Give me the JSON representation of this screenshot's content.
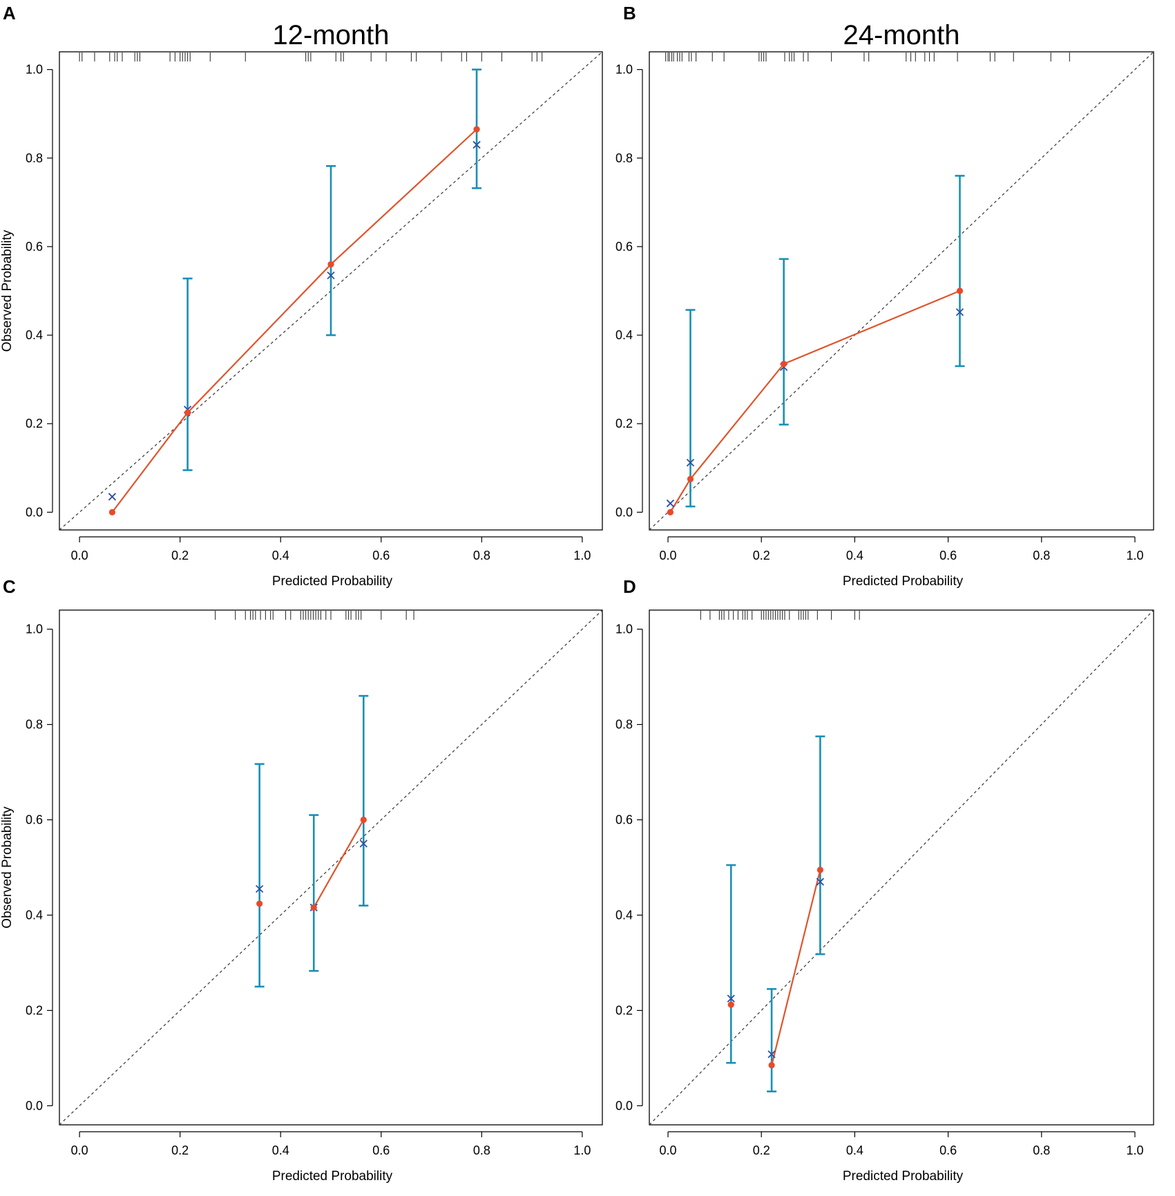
{
  "colors": {
    "frame": "#000000",
    "diagonal": "#333333",
    "apparent_line": "#e0542b",
    "apparent_point": "#e84a2a",
    "bias_cross": "#2d4ea3",
    "error_bar": "#1a8fb5",
    "rug": "#333333"
  },
  "icons": {
    "observed_marker": "filled-circle",
    "bias_corrected_marker": "x-cross"
  },
  "chart_data": [
    {
      "panel": "A",
      "type": "scatter",
      "title": "12-month",
      "xlabel": "Predicted Probability",
      "ylabel": "Observed Probability",
      "xlim": [
        -0.04,
        1.04
      ],
      "ylim": [
        -0.04,
        1.04
      ],
      "xticks": [
        "0.0",
        "0.2",
        "0.4",
        "0.6",
        "0.8",
        "1.0"
      ],
      "yticks": [
        "0.0",
        "0.2",
        "0.4",
        "0.6",
        "0.8",
        "1.0"
      ],
      "observed": [
        {
          "x": 0.065,
          "y": 0.0
        },
        {
          "x": 0.215,
          "y": 0.225
        },
        {
          "x": 0.5,
          "y": 0.56
        },
        {
          "x": 0.79,
          "y": 0.865
        }
      ],
      "bias_corrected": [
        {
          "x": 0.065,
          "y": 0.035
        },
        {
          "x": 0.215,
          "y": 0.232
        },
        {
          "x": 0.5,
          "y": 0.535
        },
        {
          "x": 0.79,
          "y": 0.83
        }
      ],
      "error_bars": [
        {
          "x": 0.215,
          "low": 0.095,
          "high": 0.528
        },
        {
          "x": 0.5,
          "low": 0.4,
          "high": 0.782
        },
        {
          "x": 0.79,
          "low": 0.732,
          "high": 1.0
        }
      ],
      "rug": [
        0.0,
        0.005,
        0.03,
        0.06,
        0.07,
        0.075,
        0.085,
        0.11,
        0.115,
        0.12,
        0.18,
        0.19,
        0.2,
        0.205,
        0.21,
        0.215,
        0.22,
        0.26,
        0.33,
        0.45,
        0.455,
        0.46,
        0.51,
        0.52,
        0.525,
        0.58,
        0.61,
        0.66,
        0.67,
        0.72,
        0.76,
        0.77,
        0.8,
        0.84,
        0.9,
        0.91,
        0.92
      ]
    },
    {
      "panel": "B",
      "type": "scatter",
      "title": "24-month",
      "xlabel": "Predicted Probability",
      "ylabel": "",
      "xlim": [
        -0.04,
        1.04
      ],
      "ylim": [
        -0.04,
        1.04
      ],
      "xticks": [
        "0.0",
        "0.2",
        "0.4",
        "0.6",
        "0.8",
        "1.0"
      ],
      "yticks": [
        "0.0",
        "0.2",
        "0.4",
        "0.6",
        "0.8",
        "1.0"
      ],
      "observed": [
        {
          "x": 0.005,
          "y": 0.0
        },
        {
          "x": 0.048,
          "y": 0.075
        },
        {
          "x": 0.248,
          "y": 0.335
        },
        {
          "x": 0.625,
          "y": 0.5
        }
      ],
      "bias_corrected": [
        {
          "x": 0.005,
          "y": 0.02
        },
        {
          "x": 0.048,
          "y": 0.112
        },
        {
          "x": 0.248,
          "y": 0.328
        },
        {
          "x": 0.625,
          "y": 0.452
        }
      ],
      "error_bars": [
        {
          "x": 0.048,
          "low": 0.013,
          "high": 0.457
        },
        {
          "x": 0.248,
          "low": 0.198,
          "high": 0.572
        },
        {
          "x": 0.625,
          "low": 0.33,
          "high": 0.76
        }
      ],
      "rug": [
        -0.005,
        0.0,
        0.003,
        0.008,
        0.012,
        0.02,
        0.025,
        0.03,
        0.045,
        0.05,
        0.06,
        0.095,
        0.12,
        0.195,
        0.2,
        0.205,
        0.21,
        0.25,
        0.26,
        0.265,
        0.27,
        0.29,
        0.3,
        0.35,
        0.42,
        0.43,
        0.51,
        0.52,
        0.53,
        0.55,
        0.56,
        0.57,
        0.62,
        0.69,
        0.7,
        0.74,
        0.82,
        0.86
      ]
    },
    {
      "panel": "C",
      "type": "scatter",
      "title": "",
      "xlabel": "Predicted Probability",
      "ylabel": "Observed Probability",
      "xlim": [
        -0.04,
        1.04
      ],
      "ylim": [
        -0.04,
        1.04
      ],
      "xticks": [
        "0.0",
        "0.2",
        "0.4",
        "0.6",
        "0.8",
        "1.0"
      ],
      "yticks": [
        "0.0",
        "0.2",
        "0.4",
        "0.6",
        "0.8",
        "1.0"
      ],
      "observed": [
        {
          "x": 0.358,
          "y": 0.424
        },
        {
          "x": 0.466,
          "y": 0.416
        },
        {
          "x": 0.565,
          "y": 0.6
        }
      ],
      "bias_corrected": [
        {
          "x": 0.358,
          "y": 0.455
        },
        {
          "x": 0.466,
          "y": 0.416
        },
        {
          "x": 0.565,
          "y": 0.55
        }
      ],
      "observed_line_from_index": 1,
      "error_bars": [
        {
          "x": 0.358,
          "low": 0.25,
          "high": 0.717
        },
        {
          "x": 0.466,
          "low": 0.283,
          "high": 0.61
        },
        {
          "x": 0.565,
          "low": 0.42,
          "high": 0.86
        }
      ],
      "rug": [
        0.27,
        0.31,
        0.33,
        0.34,
        0.345,
        0.35,
        0.36,
        0.37,
        0.38,
        0.385,
        0.41,
        0.42,
        0.44,
        0.445,
        0.45,
        0.455,
        0.46,
        0.465,
        0.47,
        0.475,
        0.48,
        0.49,
        0.5,
        0.53,
        0.535,
        0.54,
        0.55,
        0.555,
        0.56,
        0.6,
        0.65,
        0.665
      ]
    },
    {
      "panel": "D",
      "type": "scatter",
      "title": "",
      "xlabel": "Predicted Probability",
      "ylabel": "",
      "xlim": [
        -0.04,
        1.04
      ],
      "ylim": [
        -0.04,
        1.04
      ],
      "xticks": [
        "0.0",
        "0.2",
        "0.4",
        "0.6",
        "0.8",
        "1.0"
      ],
      "yticks": [
        "0.0",
        "0.2",
        "0.4",
        "0.6",
        "0.8",
        "1.0"
      ],
      "observed": [
        {
          "x": 0.135,
          "y": 0.212
        },
        {
          "x": 0.222,
          "y": 0.085
        },
        {
          "x": 0.326,
          "y": 0.495
        }
      ],
      "bias_corrected": [
        {
          "x": 0.135,
          "y": 0.225
        },
        {
          "x": 0.222,
          "y": 0.108
        },
        {
          "x": 0.326,
          "y": 0.47
        }
      ],
      "observed_line_from_index": 1,
      "error_bars": [
        {
          "x": 0.135,
          "low": 0.09,
          "high": 0.505
        },
        {
          "x": 0.222,
          "low": 0.03,
          "high": 0.245
        },
        {
          "x": 0.326,
          "low": 0.318,
          "high": 0.775
        }
      ],
      "rug": [
        0.07,
        0.09,
        0.11,
        0.115,
        0.12,
        0.13,
        0.14,
        0.15,
        0.16,
        0.165,
        0.17,
        0.18,
        0.2,
        0.205,
        0.21,
        0.215,
        0.22,
        0.225,
        0.23,
        0.235,
        0.24,
        0.245,
        0.25,
        0.26,
        0.28,
        0.285,
        0.29,
        0.295,
        0.3,
        0.32,
        0.35,
        0.4,
        0.41
      ]
    }
  ]
}
